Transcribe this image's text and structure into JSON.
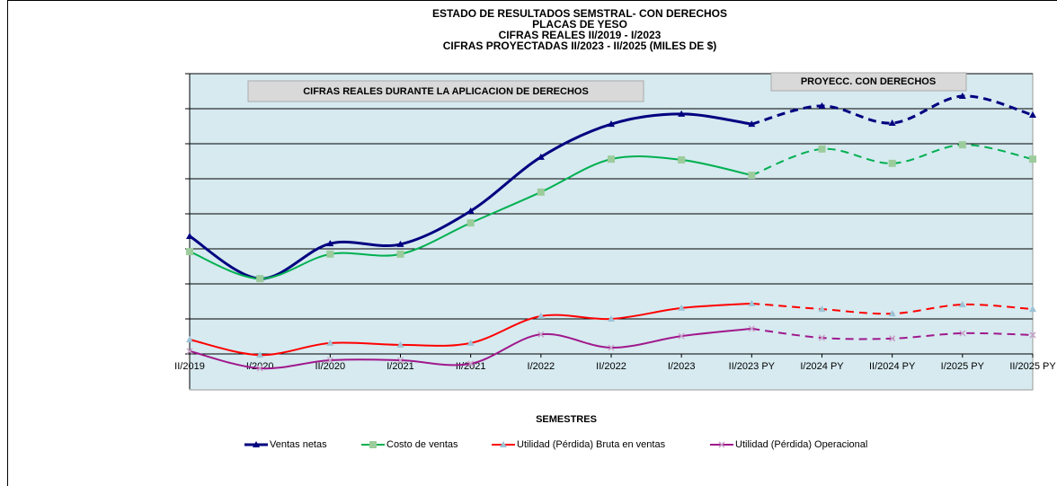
{
  "chart_data": {
    "type": "line",
    "title": [
      "ESTADO DE RESULTADOS SEMSTRAL- CON DERECHOS",
      "PLACAS DE YESO",
      "CIFRAS REALES II/2019 - I/2023",
      "CIFRAS PROYECTADAS II/2023 - II/2025 (MILES DE $)"
    ],
    "annotations": [
      "CIFRAS REALES DURANTE LA APLICACION DE DERECHOS",
      "PROYECC. CON DERECHOS"
    ],
    "x_label": "SEMESTRES",
    "categories": [
      "II/2019",
      "I/2020",
      "II/2020",
      "I/2021",
      "II/2021",
      "I/2022",
      "II/2022",
      "I/2023",
      "II/2023 PY",
      "I/2024 PY",
      "II/2024 PY",
      "I/2025 PY",
      "II/2025 PY"
    ],
    "projected_from": 8,
    "ylim": [
      -1,
      8
    ],
    "yticks": [
      0,
      1,
      2,
      3,
      4,
      5,
      6,
      7,
      8
    ],
    "grid": true,
    "series": [
      {
        "name": "Ventas netas",
        "color": "#000080",
        "marker": "triangle",
        "values": [
          3.36,
          2.15,
          3.15,
          3.13,
          4.08,
          5.62,
          6.56,
          6.85,
          6.56,
          7.08,
          6.59,
          7.36,
          6.82
        ]
      },
      {
        "name": "Costo de ventas",
        "color": "#00b050",
        "marker": "square",
        "values": [
          2.92,
          2.15,
          2.85,
          2.85,
          3.74,
          4.62,
          5.56,
          5.54,
          5.1,
          5.85,
          5.44,
          5.97,
          5.56
        ]
      },
      {
        "name": "Utilidad (Pérdida) Bruta en ventas",
        "color": "#ff0000",
        "marker": "triangle",
        "values": [
          0.41,
          -0.03,
          0.31,
          0.26,
          0.31,
          1.08,
          1.0,
          1.31,
          1.44,
          1.28,
          1.15,
          1.41,
          1.28
        ]
      },
      {
        "name": "Utilidad (Pérdida) Operacional",
        "color": "#a0188c",
        "marker": "cross",
        "values": [
          0.08,
          -0.41,
          -0.18,
          -0.18,
          -0.28,
          0.56,
          0.18,
          0.51,
          0.72,
          0.46,
          0.44,
          0.59,
          0.54
        ]
      }
    ]
  }
}
